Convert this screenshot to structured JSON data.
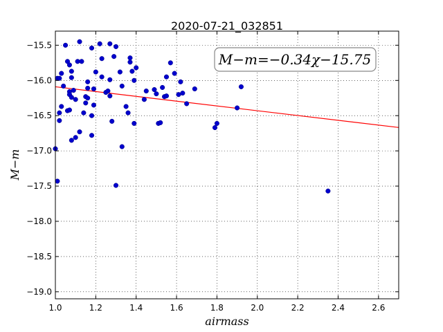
{
  "chart_data": {
    "type": "scatter",
    "title": "2020-07-21_032851",
    "xlabel": "airmass",
    "ylabel": "M−m",
    "xlim": [
      1.0,
      2.7
    ],
    "ylim": [
      -19.1,
      -15.3
    ],
    "x_ticks": [
      "1.0",
      "1.2",
      "1.4",
      "1.6",
      "1.8",
      "2.0",
      "2.2",
      "2.4",
      "2.6"
    ],
    "y_ticks": [
      "−15.5",
      "−16.0",
      "−16.5",
      "−17.0",
      "−17.5",
      "−18.0",
      "−18.5",
      "−19.0"
    ],
    "grid": true,
    "annotation": "M−m=−0.34χ−15.75",
    "annotation_placement": "top-right",
    "colors": {
      "points": "#0000cd",
      "fit_line": "#ff0000"
    },
    "fit": {
      "slope": -0.34,
      "intercept": -15.75
    },
    "points": [
      [
        1.0,
        -16.97
      ],
      [
        1.01,
        -17.43
      ],
      [
        1.01,
        -15.97
      ],
      [
        1.02,
        -16.57
      ],
      [
        1.02,
        -16.46
      ],
      [
        1.02,
        -15.97
      ],
      [
        1.03,
        -16.37
      ],
      [
        1.03,
        -15.9
      ],
      [
        1.04,
        -16.08
      ],
      [
        1.05,
        -15.5
      ],
      [
        1.06,
        -15.73
      ],
      [
        1.06,
        -16.43
      ],
      [
        1.07,
        -15.78
      ],
      [
        1.07,
        -16.16
      ],
      [
        1.07,
        -16.2
      ],
      [
        1.07,
        -16.42
      ],
      [
        1.08,
        -16.24
      ],
      [
        1.08,
        -15.87
      ],
      [
        1.08,
        -16.85
      ],
      [
        1.08,
        -15.96
      ],
      [
        1.09,
        -16.14
      ],
      [
        1.1,
        -16.81
      ],
      [
        1.1,
        -16.27
      ],
      [
        1.11,
        -15.73
      ],
      [
        1.12,
        -15.45
      ],
      [
        1.12,
        -16.73
      ],
      [
        1.13,
        -15.73
      ],
      [
        1.14,
        -16.46
      ],
      [
        1.15,
        -16.32
      ],
      [
        1.15,
        -16.23
      ],
      [
        1.16,
        -16.02
      ],
      [
        1.16,
        -16.11
      ],
      [
        1.16,
        -16.25
      ],
      [
        1.18,
        -15.54
      ],
      [
        1.18,
        -16.78
      ],
      [
        1.18,
        -16.5
      ],
      [
        1.19,
        -16.35
      ],
      [
        1.19,
        -16.12
      ],
      [
        1.2,
        -15.88
      ],
      [
        1.22,
        -15.48
      ],
      [
        1.23,
        -15.69
      ],
      [
        1.23,
        -15.95
      ],
      [
        1.25,
        -16.17
      ],
      [
        1.26,
        -16.15
      ],
      [
        1.27,
        -15.99
      ],
      [
        1.27,
        -15.48
      ],
      [
        1.27,
        -16.22
      ],
      [
        1.28,
        -16.58
      ],
      [
        1.29,
        -15.66
      ],
      [
        1.3,
        -15.52
      ],
      [
        1.3,
        -17.49
      ],
      [
        1.32,
        -15.88
      ],
      [
        1.33,
        -16.08
      ],
      [
        1.33,
        -16.94
      ],
      [
        1.35,
        -16.37
      ],
      [
        1.36,
        -16.46
      ],
      [
        1.37,
        -15.74
      ],
      [
        1.37,
        -15.68
      ],
      [
        1.38,
        -15.87
      ],
      [
        1.39,
        -16.0
      ],
      [
        1.39,
        -16.61
      ],
      [
        1.4,
        -15.82
      ],
      [
        1.44,
        -16.27
      ],
      [
        1.45,
        -16.15
      ],
      [
        1.49,
        -16.13
      ],
      [
        1.5,
        -16.19
      ],
      [
        1.51,
        -16.61
      ],
      [
        1.52,
        -16.6
      ],
      [
        1.53,
        -16.1
      ],
      [
        1.54,
        -16.23
      ],
      [
        1.55,
        -16.22
      ],
      [
        1.55,
        -15.95
      ],
      [
        1.57,
        -15.75
      ],
      [
        1.59,
        -15.9
      ],
      [
        1.61,
        -16.2
      ],
      [
        1.62,
        -16.02
      ],
      [
        1.63,
        -16.18
      ],
      [
        1.65,
        -16.33
      ],
      [
        1.69,
        -16.12
      ],
      [
        1.79,
        -16.67
      ],
      [
        1.8,
        -16.61
      ],
      [
        1.9,
        -16.39
      ],
      [
        1.92,
        -16.09
      ],
      [
        2.35,
        -17.57
      ]
    ]
  }
}
